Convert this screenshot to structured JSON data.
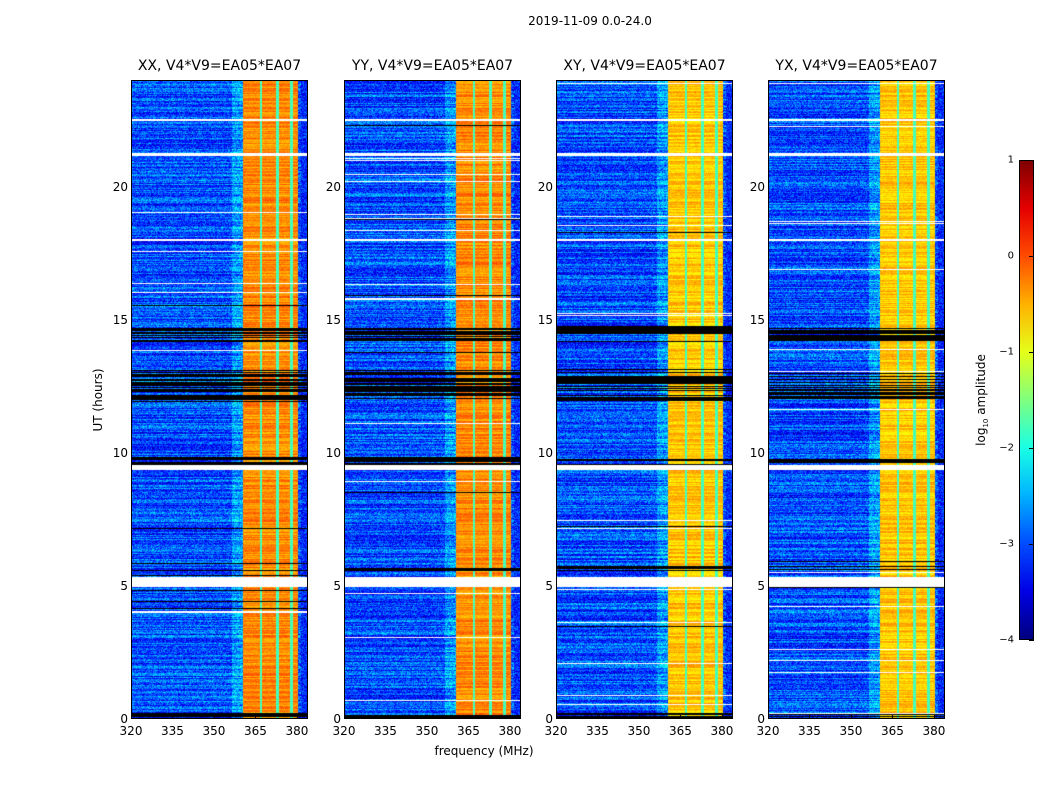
{
  "chart_data": {
    "type": "heatmap",
    "title": "2019-11-09 0.0-24.0",
    "xlabel": "frequency (MHz)",
    "ylabel": "UT (hours)",
    "xlim": [
      320,
      384
    ],
    "ylim": [
      0,
      24
    ],
    "x_ticks": [
      "320",
      "335",
      "350",
      "365",
      "380"
    ],
    "x_tick_values": [
      320,
      335,
      350,
      365,
      380
    ],
    "y_ticks": [
      "0",
      "5",
      "10",
      "15",
      "20"
    ],
    "y_tick_values": [
      0,
      5,
      10,
      15,
      20
    ],
    "colormap": "jet",
    "colorbar": {
      "label": "log10 amplitude",
      "label_main": "log",
      "label_sub": "10",
      "label_rest": " amplitude",
      "range": [
        -4,
        1
      ],
      "ticks": [
        "1",
        "0",
        "−1",
        "−2",
        "−3",
        "−4"
      ],
      "tick_values": [
        1,
        0,
        -1,
        -2,
        -3,
        -4
      ]
    },
    "panels": [
      {
        "title": "XX, V4*V9=EA05*EA07",
        "polarization": "XX",
        "baseline": "V4*V9=EA05*EA07"
      },
      {
        "title": "YY, V4*V9=EA05*EA07",
        "polarization": "YY",
        "baseline": "V4*V9=EA05*EA07"
      },
      {
        "title": "XY, V4*V9=EA05*EA07",
        "polarization": "XY",
        "baseline": "V4*V9=EA05*EA07"
      },
      {
        "title": "YX, V4*V9=EA05*EA07",
        "polarization": "YX",
        "baseline": "V4*V9=EA05*EA07"
      }
    ],
    "features": {
      "strong_band_mhz": [
        360,
        380
      ],
      "strong_band_level_log10": -0.3,
      "background_level_log10": -3,
      "gap_lines_mhz": [
        366.5,
        372.5,
        377.5
      ],
      "flagged_hours_black": [
        [
          14.2,
          14.8
        ],
        [
          12.0,
          13.2
        ],
        [
          9.4,
          9.9
        ],
        [
          5.6,
          5.8
        ],
        [
          0.0,
          0.3
        ]
      ],
      "flagged_hours_white": [
        [
          9.4,
          9.6
        ],
        [
          5.0,
          5.4
        ],
        [
          22.5,
          22.6
        ],
        [
          21.2,
          21.3
        ],
        [
          18.0,
          18.1
        ]
      ]
    }
  }
}
